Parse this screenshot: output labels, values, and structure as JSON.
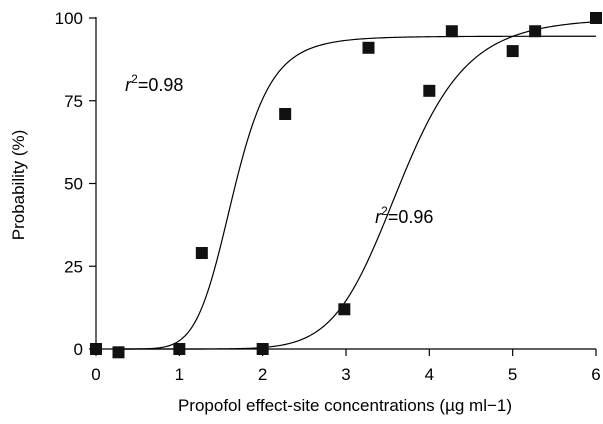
{
  "chart_data": {
    "type": "scatter",
    "title": "",
    "xlabel": "Propofol effect-site concentrations (µg ml−1)",
    "ylabel": "Probability (%)",
    "xlim": [
      0,
      6
    ],
    "ylim": [
      0,
      100
    ],
    "x_ticks": [
      "0",
      "1",
      "2",
      "3",
      "4",
      "5",
      "6"
    ],
    "y_ticks": [
      "0",
      "25",
      "50",
      "75",
      "100"
    ],
    "grid": false,
    "legend": "none",
    "series": [
      {
        "points": [
          [
            0,
            0
          ],
          [
            0.27,
            -1
          ],
          [
            1,
            0
          ],
          [
            1.27,
            29
          ],
          [
            2,
            0
          ],
          [
            2.27,
            71
          ],
          [
            3.27,
            91
          ],
          [
            4.27,
            96
          ],
          [
            5.27,
            96
          ],
          [
            6,
            100
          ]
        ],
        "fit": {
          "model": "logistic",
          "ec50": 1.65,
          "slope": 7.2,
          "max": 94.5
        },
        "annotation": {
          "r2_text": "=0.98",
          "at": [
            0.35,
            78
          ]
        }
      },
      {
        "points": [
          [
            2.98,
            12
          ],
          [
            4,
            78
          ],
          [
            5,
            90
          ]
        ],
        "fit": {
          "model": "logistic",
          "ec50": 3.65,
          "slope": 9.0,
          "max": 100
        },
        "annotation": {
          "r2_text": "=0.96",
          "at": [
            3.35,
            38
          ]
        }
      }
    ]
  }
}
